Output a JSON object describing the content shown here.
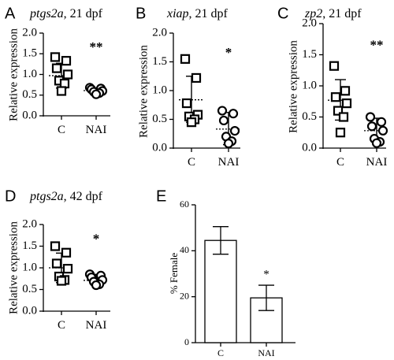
{
  "chart_data": [
    {
      "type": "scatter",
      "panel": "A",
      "gene": "ptgs2a",
      "age": ", 21 dpf",
      "ylabel": "Relative expression",
      "ylim": [
        0,
        2.0
      ],
      "yticks": [
        "0.0",
        "0.5",
        "1.0",
        "1.5",
        "2.0"
      ],
      "categories": [
        "C",
        "NAI"
      ],
      "series": [
        {
          "values": [
            1.42,
            1.33,
            1.15,
            1.0,
            0.85,
            0.78,
            0.6
          ],
          "mean": 0.97,
          "sd": [
            0.67,
            1.27
          ]
        },
        {
          "values": [
            0.68,
            0.66,
            0.64,
            0.6,
            0.58,
            0.55,
            0.52
          ],
          "mean": 0.61,
          "sd": [
            0.56,
            0.67
          ]
        }
      ],
      "significance": "**",
      "colors": {
        "ink": "#000000"
      }
    },
    {
      "type": "scatter",
      "panel": "B",
      "gene": "xiap",
      "age": ", 21 dpf",
      "ylabel": "Relative expression",
      "ylim": [
        0,
        2.0
      ],
      "yticks": [
        "0.0",
        "0.5",
        "1.0",
        "1.5",
        "2.0"
      ],
      "categories": [
        "C",
        "NAI"
      ],
      "series": [
        {
          "values": [
            1.55,
            1.22,
            0.78,
            0.58,
            0.55,
            0.5,
            0.45
          ],
          "mean": 0.84,
          "sd": [
            0.45,
            1.25
          ]
        },
        {
          "values": [
            0.65,
            0.6,
            0.48,
            0.3,
            0.2,
            0.12,
            0.08
          ],
          "mean": 0.33,
          "sd": [
            0.06,
            0.62
          ]
        }
      ],
      "significance": "*"
    },
    {
      "type": "scatter",
      "panel": "C",
      "gene": "zp2",
      "age": ", 21 dpf",
      "ylabel": "Relative expression",
      "ylim": [
        0,
        2.0
      ],
      "yticks": [
        "0.0",
        "0.5",
        "1.0",
        "1.5",
        "2.0"
      ],
      "categories": [
        "C",
        "NAI"
      ],
      "series": [
        {
          "values": [
            1.32,
            0.92,
            0.82,
            0.72,
            0.6,
            0.5,
            0.25
          ],
          "mean": 0.77,
          "sd": [
            0.45,
            1.1
          ]
        },
        {
          "values": [
            0.5,
            0.42,
            0.35,
            0.28,
            0.15,
            0.1,
            0.08
          ],
          "mean": 0.28,
          "sd": [
            0.1,
            0.48
          ]
        }
      ],
      "significance": "**"
    },
    {
      "type": "scatter",
      "panel": "D",
      "gene": "ptgs2a",
      "age": ", 42 dpf",
      "ylabel": "Relative expression",
      "ylim": [
        0,
        2.0
      ],
      "yticks": [
        "0.0",
        "0.5",
        "1.0",
        "1.5",
        "2.0"
      ],
      "categories": [
        "C",
        "NAI"
      ],
      "series": [
        {
          "values": [
            1.5,
            1.35,
            1.1,
            0.98,
            0.8,
            0.72,
            0.7
          ],
          "mean": 1.0,
          "sd": [
            0.66,
            1.34
          ]
        },
        {
          "values": [
            0.85,
            0.82,
            0.78,
            0.72,
            0.68,
            0.62,
            0.6
          ],
          "mean": 0.71,
          "sd": [
            0.6,
            0.85
          ]
        }
      ],
      "significance": "*"
    },
    {
      "type": "bar",
      "panel": "E",
      "ylabel": "% Female",
      "ylim": [
        0,
        60
      ],
      "yticks": [
        "0",
        "20",
        "40",
        "60"
      ],
      "categories": [
        "C",
        "NAI"
      ],
      "values": [
        44.5,
        19.5
      ],
      "error": [
        6,
        5.5
      ],
      "significance": [
        "",
        "*"
      ]
    }
  ]
}
